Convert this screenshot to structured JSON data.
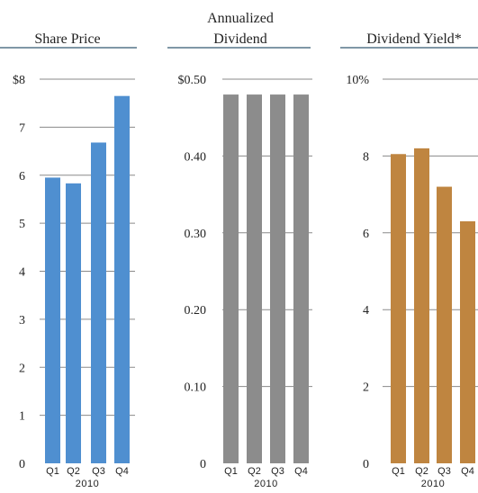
{
  "chart_data": [
    {
      "type": "bar",
      "title": [
        "Share Price"
      ],
      "categories": [
        "Q1",
        "Q2",
        "Q3",
        "Q4"
      ],
      "group_label": "2010",
      "values": [
        5.95,
        5.83,
        6.68,
        7.65
      ],
      "ylim": [
        0,
        8
      ],
      "yticks": [
        0,
        1,
        2,
        3,
        4,
        5,
        6,
        7,
        8
      ],
      "ytick_labels": [
        "0",
        "1",
        "2",
        "3",
        "4",
        "5",
        "6",
        "7",
        "$8"
      ],
      "grid": true,
      "color": "#4f8fd0"
    },
    {
      "type": "bar",
      "title": [
        "Annualized",
        "Dividend"
      ],
      "categories": [
        "Q1",
        "Q2",
        "Q3",
        "Q4"
      ],
      "group_label": "2010",
      "values": [
        0.48,
        0.48,
        0.48,
        0.48
      ],
      "ylim": [
        0,
        0.5
      ],
      "yticks": [
        0,
        0.1,
        0.2,
        0.3,
        0.4,
        0.5
      ],
      "ytick_labels": [
        "0",
        "0.10",
        "0.20",
        "0.30",
        "0.40",
        "$0.50"
      ],
      "grid": true,
      "color": "#8c8c8c"
    },
    {
      "type": "bar",
      "title": [
        "Dividend Yield*"
      ],
      "categories": [
        "Q1",
        "Q2",
        "Q3",
        "Q4"
      ],
      "group_label": "2010",
      "values": [
        8.05,
        8.2,
        7.2,
        6.3
      ],
      "ylim": [
        0,
        10
      ],
      "yticks": [
        0,
        2,
        4,
        6,
        8,
        10
      ],
      "ytick_labels": [
        "0",
        "2",
        "4",
        "6",
        "8",
        "10%"
      ],
      "grid": true,
      "color": "#bf8540"
    }
  ]
}
